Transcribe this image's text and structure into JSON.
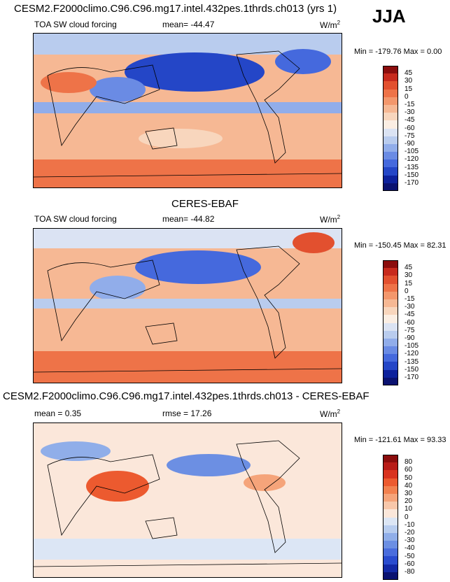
{
  "header": {
    "title": "CESM2.F2000climo.C96.C96.mg17.intel.432pes.1thrds.ch013 (yrs 1)",
    "season": "JJA"
  },
  "chart_data": [
    {
      "type": "heatmap",
      "panel": "model",
      "title": "",
      "variable": "TOA SW cloud forcing",
      "stat_label": "mean=",
      "stat_value": "-44.47",
      "units_base": "W/m",
      "units_exp": "2",
      "min_label": "Min =",
      "min": "-179.76",
      "max_label": "Max =",
      "max": "0.00",
      "levels": [
        "45",
        "30",
        "15",
        "0",
        "-15",
        "-30",
        "-45",
        "-60",
        "-75",
        "-90",
        "-105",
        "-120",
        "-135",
        "-150",
        "-170"
      ],
      "colors": [
        "#8b0d0d",
        "#c72a1d",
        "#e2502f",
        "#ee7348",
        "#f3976c",
        "#f6b894",
        "#f8d6bd",
        "#fbeee3",
        "#dbe3f3",
        "#b9ccee",
        "#91adea",
        "#6a8be4",
        "#4569dd",
        "#2446c7",
        "#0d219c",
        "#0a1270"
      ]
    },
    {
      "type": "heatmap",
      "panel": "obs",
      "title": "CERES-EBAF",
      "variable": "TOA SW cloud forcing",
      "stat_label": "mean=",
      "stat_value": "-44.82",
      "units_base": "W/m",
      "units_exp": "2",
      "min_label": "Min =",
      "min": "-150.45",
      "max_label": "Max =",
      "max": "82.31",
      "levels": [
        "45",
        "30",
        "15",
        "0",
        "-15",
        "-30",
        "-45",
        "-60",
        "-75",
        "-90",
        "-105",
        "-120",
        "-135",
        "-150",
        "-170"
      ],
      "colors": [
        "#8b0d0d",
        "#c72a1d",
        "#e2502f",
        "#ee7348",
        "#f3976c",
        "#f6b894",
        "#f8d6bd",
        "#fbeee3",
        "#dbe3f3",
        "#b9ccee",
        "#91adea",
        "#6a8be4",
        "#4569dd",
        "#2446c7",
        "#0d219c",
        "#0a1270"
      ]
    },
    {
      "type": "heatmap",
      "panel": "diff",
      "title": "CESM2.F2000climo.C96.C96.mg17.intel.432pes.1thrds.ch013 - CERES-EBAF",
      "variable": "",
      "stat_label": "mean =",
      "stat_value": "0.35",
      "stat2_label": "rmse =",
      "stat2_value": "17.26",
      "units_base": "W/m",
      "units_exp": "2",
      "min_label": "Min =",
      "min": "-121.61",
      "max_label": "Max =",
      "max": "93.33",
      "levels": [
        "80",
        "60",
        "50",
        "40",
        "30",
        "20",
        "10",
        "0",
        "-10",
        "-20",
        "-30",
        "-40",
        "-50",
        "-60",
        "-80"
      ],
      "colors": [
        "#8b0d0d",
        "#b81c18",
        "#d9331f",
        "#ec5a2f",
        "#f2814f",
        "#f5a47a",
        "#f8c7aa",
        "#fbe7da",
        "#dce6f5",
        "#b8cdef",
        "#90aee9",
        "#6c8fe3",
        "#4a6ddd",
        "#2a4ccf",
        "#1329a6",
        "#0a1270"
      ]
    }
  ]
}
